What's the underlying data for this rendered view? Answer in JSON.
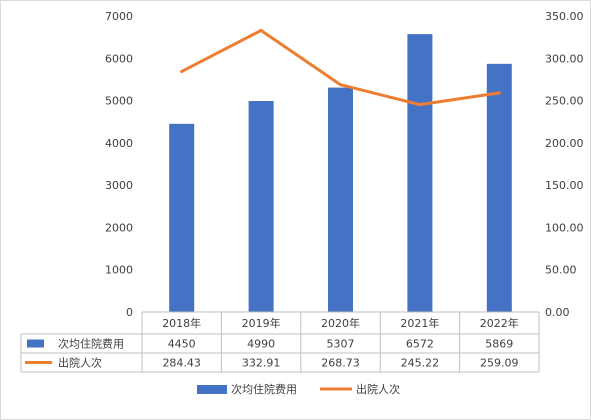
{
  "chart_data": {
    "type": "bar",
    "categories": [
      "2018年",
      "2019年",
      "2020年",
      "2021年",
      "2022年"
    ],
    "series": [
      {
        "name": "次均住院费用",
        "type": "bar",
        "axis": "left",
        "color": "#4472C4",
        "values": [
          4450,
          4990,
          5307,
          6572,
          5869
        ],
        "labels": [
          "4450",
          "4990",
          "5307",
          "6572",
          "5869"
        ]
      },
      {
        "name": "出院人次",
        "type": "line",
        "axis": "right",
        "color": "#ED7D31",
        "values": [
          284.43,
          332.91,
          268.73,
          245.22,
          259.09
        ],
        "labels": [
          "284.43",
          "332.91",
          "268.73",
          "245.22",
          "259.09"
        ]
      }
    ],
    "y_left": {
      "min": 0,
      "max": 7000,
      "step": 1000,
      "ticks": [
        "0",
        "1000",
        "2000",
        "3000",
        "4000",
        "5000",
        "6000",
        "7000"
      ]
    },
    "y_right": {
      "min": 0,
      "max": 350,
      "step": 50,
      "ticks": [
        "0.00",
        "50.00",
        "100.00",
        "150.00",
        "200.00",
        "250.00",
        "300.00",
        "350.00"
      ]
    },
    "grid": false,
    "data_table": true,
    "legend_position": "bottom"
  }
}
